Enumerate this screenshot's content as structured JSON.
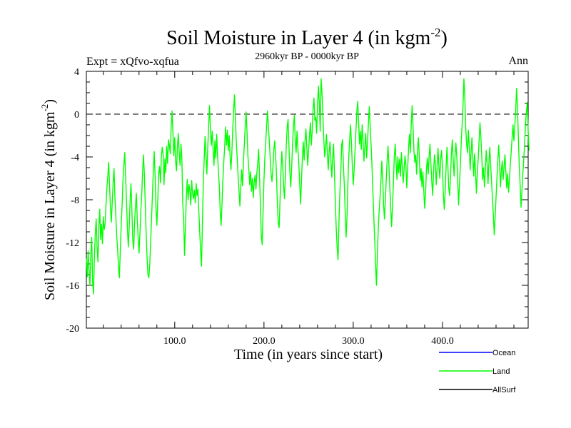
{
  "chart_data": {
    "type": "line",
    "title": "Soil Moisture in Layer 4 (in kgm",
    "title_sup": "-2",
    "title_end": ")",
    "subtitle": "2960kyr BP - 0000kyr BP",
    "expt_label": "Expt = xQfvo-xqfua",
    "season_label": "Ann",
    "xlabel": "Time (in years since start)",
    "ylabel": "Soil Moisture in Layer 4 (in kgm",
    "ylabel_sup": "-2",
    "ylabel_end": ")",
    "xlim": [
      1,
      496
    ],
    "ylim": [
      -20,
      4
    ],
    "x_ticks": [
      100,
      200,
      300,
      400
    ],
    "x_tick_labels": [
      "100.0",
      "200.0",
      "300.0",
      "400.0"
    ],
    "y_ticks": [
      4,
      0,
      -4,
      -8,
      -12,
      -16,
      -20
    ],
    "y_tick_labels": [
      "4",
      "0",
      "-4",
      "-8",
      "-12",
      "-16",
      "-20"
    ],
    "reference_line": 0,
    "legend": [
      {
        "name": "Ocean",
        "color": "#0000ff"
      },
      {
        "name": "Land",
        "color": "#00ff00"
      },
      {
        "name": "AllSurf",
        "color": "#000000"
      }
    ],
    "series": [
      {
        "name": "Land",
        "color": "#00ff00",
        "x_start": 1,
        "x_step": 1,
        "values": [
          -13.5,
          -15.2,
          -12.8,
          -14.6,
          -16.0,
          -13.1,
          -11.5,
          -15.6,
          -16.8,
          -13.4,
          -11.2,
          -9.8,
          -12.4,
          -13.8,
          -10.5,
          -8.9,
          -11.7,
          -10.3,
          -12.1,
          -9.6,
          -10.8,
          -10.2,
          -8.5,
          -6.9,
          -5.8,
          -4.5,
          -6.7,
          -8.8,
          -10.1,
          -8.2,
          -6.4,
          -5.1,
          -7.8,
          -9.5,
          -11.4,
          -12.6,
          -14.2,
          -15.3,
          -12.8,
          -10.4,
          -8.6,
          -6.2,
          -4.8,
          -3.6,
          -5.9,
          -8.2,
          -10.7,
          -12.4,
          -10.6,
          -8.1,
          -6.5,
          -9.0,
          -11.8,
          -12.6,
          -10.2,
          -8.6,
          -7.4,
          -9.8,
          -11.5,
          -13.0,
          -11.2,
          -9.1,
          -7.6,
          -5.4,
          -3.8,
          -5.6,
          -8.4,
          -11.2,
          -13.4,
          -15.0,
          -15.3,
          -14.1,
          -12.0,
          -9.8,
          -7.6,
          -5.3,
          -3.5,
          -5.7,
          -8.8,
          -10.4,
          -8.1,
          -5.6,
          -4.9,
          -6.4,
          -4.0,
          -3.1,
          -3.8,
          -6.6,
          -4.2,
          -5.5,
          -3.0,
          -4.6,
          -2.4,
          -2.9,
          -3.7,
          -1.2,
          0.3,
          -1.8,
          -3.9,
          -2.2,
          -4.4,
          -5.3,
          -3.1,
          -1.8,
          -3.6,
          -4.8,
          -2.8,
          -4.1,
          -8.4,
          -9.7,
          -13.2,
          -10.5,
          -7.8,
          -6.1,
          -8.0,
          -6.6,
          -7.2,
          -8.5,
          -6.2,
          -7.4,
          -7.9,
          -7.1,
          -8.3,
          -6.5,
          -7.6,
          -7.0,
          -9.1,
          -11.0,
          -12.8,
          -14.2,
          -10.3,
          -6.5,
          -4.2,
          -2.1,
          -3.8,
          -5.6,
          -3.2,
          -1.1,
          0.8,
          -1.4,
          -2.9,
          -1.6,
          -3.3,
          -4.8,
          -2.5,
          -4.1,
          -1.9,
          -3.8,
          -5.4,
          -6.8,
          -9.2,
          -10.4,
          -8.3,
          -6.1,
          -4.4,
          -3.0,
          -1.2,
          -2.9,
          -1.5,
          -3.4,
          -2.0,
          -3.9,
          -5.2,
          -3.6,
          -1.4,
          0.4,
          1.8,
          -0.5,
          -2.6,
          -4.1,
          -5.8,
          -7.1,
          -8.6,
          -6.9,
          -5.2,
          -6.7,
          -4.4,
          -2.8,
          -1.1,
          0.2,
          -1.7,
          -3.9,
          -5.1,
          -6.6,
          -5.4,
          -7.2,
          -6.0,
          -7.8,
          -6.4,
          -5.7,
          -7.0,
          -5.5,
          -4.6,
          -3.3,
          -5.8,
          -8.4,
          -11.4,
          -12.2,
          -9.0,
          -6.1,
          -4.0,
          -2.6,
          -1.0,
          0.3,
          -1.3,
          -2.5,
          -4.2,
          -5.6,
          -6.3,
          -5.0,
          -3.4,
          -2.5,
          -3.8,
          -5.6,
          -8.4,
          -10.2,
          -10.6,
          -8.0,
          -5.4,
          -3.5,
          -4.8,
          -6.7,
          -7.9,
          -5.5,
          -2.9,
          -1.2,
          -0.5,
          -3.0,
          -5.4,
          -6.8,
          -5.0,
          -2.8,
          -1.1,
          -0.1,
          -2.4,
          -3.6,
          -1.6,
          -3.2,
          -4.6,
          -6.5,
          -8.4,
          -6.2,
          -4.1,
          -2.6,
          -4.3,
          -2.5,
          -1.4,
          -3.1,
          -4.8,
          -3.4,
          -2.0,
          -0.8,
          -2.9,
          -1.6,
          0.5,
          1.5,
          -0.6,
          -0.3,
          -1.8,
          0.9,
          2.6,
          1.0,
          -1.6,
          3.3,
          2.0,
          -0.1,
          -2.3,
          -4.0,
          -3.1,
          -1.9,
          -3.7,
          -5.2,
          -3.5,
          -2.6,
          -4.3,
          -5.9,
          -4.1,
          -2.8,
          -5.6,
          -8.4,
          -10.8,
          -12.5,
          -13.6,
          -10.1,
          -7.4,
          -5.6,
          -2.9,
          -2.4,
          -4.8,
          -6.6,
          -9.2,
          -11.5,
          -9.7,
          -6.5,
          -4.0,
          -2.4,
          -1.0,
          -2.7,
          -4.9,
          -6.6,
          -5.2,
          -3.4,
          -1.6,
          0.2,
          1.2,
          -0.6,
          -2.8,
          -1.6,
          -3.3,
          -1.0,
          -2.5,
          -4.4,
          -3.0,
          -1.8,
          -4.1,
          -2.6,
          -0.9,
          0.7,
          -1.1,
          -2.9,
          -4.8,
          -7.2,
          -9.5,
          -11.6,
          -14.0,
          -16.0,
          -13.2,
          -10.8,
          -9.1,
          -7.8,
          -6.3,
          -4.4,
          -5.9,
          -8.5,
          -9.8,
          -8.0,
          -6.1,
          -4.3,
          -3.0,
          -4.8,
          -6.9,
          -8.7,
          -10.5,
          -8.6,
          -6.4,
          -4.0,
          -2.8,
          -4.5,
          -6.1,
          -4.0,
          -5.5,
          -4.2,
          -5.8,
          -3.6,
          -4.9,
          -6.4,
          -5.1,
          -3.9,
          -4.8,
          -6.9,
          -5.0,
          -3.2,
          -1.9,
          -3.6,
          -0.9,
          0.8,
          -1.2,
          -3.4,
          -4.5,
          -3.8,
          -5.6,
          -3.4,
          -2.2,
          -3.9,
          -6.2,
          -5.1,
          -6.8,
          -5.4,
          -7.1,
          -8.8,
          -7.5,
          -5.2,
          -4.1,
          -5.6,
          -4.0,
          -2.8,
          -4.6,
          -6.3,
          -7.6,
          -5.4,
          -3.8,
          -4.7,
          -6.6,
          -4.8,
          -3.2,
          -4.9,
          -6.0,
          -4.2,
          -3.4,
          -5.1,
          -7.6,
          -8.9,
          -7.2,
          -5.0,
          -3.1,
          -4.8,
          -6.9,
          -7.6,
          -5.8,
          -3.6,
          -2.4,
          -4.3,
          -5.8,
          -4.0,
          -2.7,
          -3.9,
          -6.1,
          -8.5,
          -6.6,
          -4.8,
          -2.6,
          -1.0,
          0.8,
          3.3,
          1.6,
          -1.2,
          -2.8,
          -3.6,
          -1.5,
          -3.1,
          -5.2,
          -3.6,
          -2.2,
          -4.0,
          -5.8,
          -3.7,
          -5.3,
          -7.4,
          -5.5,
          -4.2,
          -2.5,
          -0.8,
          -2.1,
          -3.9,
          -6.1,
          -5.0,
          -6.8,
          -5.2,
          -3.4,
          -4.7,
          -6.5,
          -4.6,
          -3.1,
          -4.8,
          -6.3,
          -8.0,
          -9.4,
          -11.3,
          -9.6,
          -7.8,
          -6.0,
          -4.3,
          -2.9,
          -4.7,
          -6.8,
          -5.2,
          -4.4,
          -6.1,
          -4.9,
          -3.8,
          -5.4,
          -6.9,
          -5.6,
          -7.3,
          -6.1,
          -4.7,
          -3.5,
          -2.2,
          -1.0,
          -2.5,
          -1.1,
          0.3,
          2.4,
          0.6,
          -2.1,
          -4.8,
          -6.6,
          -8.7,
          -7.2,
          -5.6,
          -4.3,
          -2.8,
          -0.9,
          0.2,
          1.1,
          -1.6,
          -3.4
        ]
      }
    ]
  }
}
